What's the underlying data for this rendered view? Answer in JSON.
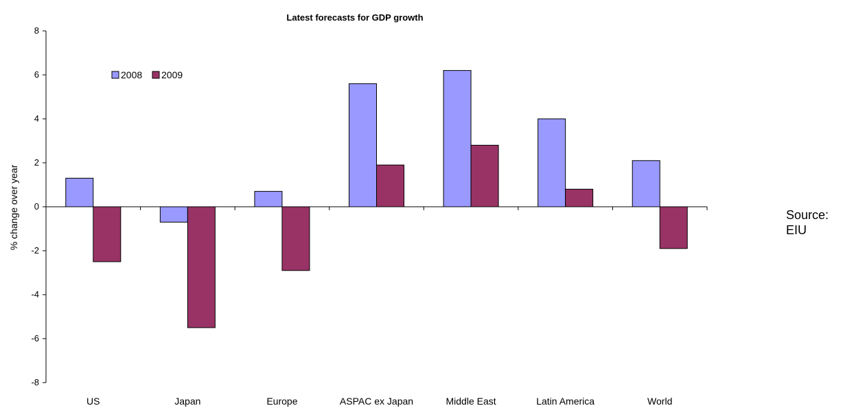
{
  "chart_data": {
    "type": "bar",
    "title": "Latest forecasts for GDP growth",
    "xlabel": "",
    "ylabel": "% change over year",
    "ylim": [
      -8,
      8
    ],
    "yticks": [
      "8",
      "6",
      "4",
      "2",
      "0",
      "-2",
      "-4",
      "-6",
      "-8"
    ],
    "ytick_values": [
      8,
      6,
      4,
      2,
      0,
      -2,
      -4,
      -6,
      -8
    ],
    "categories": [
      "US",
      "Japan",
      "Europe",
      "ASPAC ex Japan",
      "Middle East",
      "Latin America",
      "World"
    ],
    "series": [
      {
        "name": "2008",
        "color": "#9999ff",
        "values": [
          1.3,
          -0.7,
          0.7,
          5.6,
          6.2,
          4.0,
          2.1
        ]
      },
      {
        "name": "2009",
        "color": "#993366",
        "values": [
          -2.5,
          -5.5,
          -2.9,
          1.9,
          2.8,
          0.8,
          -1.9
        ]
      }
    ],
    "grid": false,
    "legend": "top-left"
  },
  "source": {
    "line1": "Source:",
    "line2": "EIU"
  }
}
